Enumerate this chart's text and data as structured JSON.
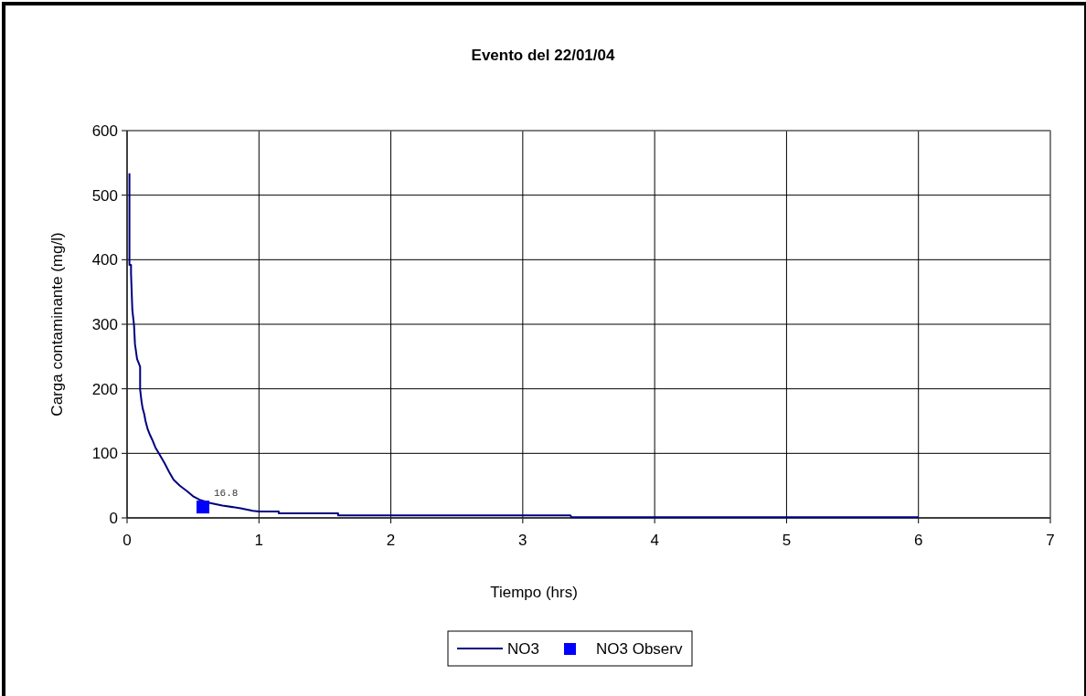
{
  "chart_data": {
    "type": "line",
    "title": "Evento del 22/01/04",
    "xlabel": "Tiempo (hrs)",
    "ylabel": "Carga contaminante (mg/l)",
    "xlim": [
      0,
      7
    ],
    "xticks": [
      0,
      1,
      2,
      3,
      4,
      5,
      6,
      7
    ],
    "ylim": [
      0,
      600
    ],
    "yticks": [
      0,
      100,
      200,
      300,
      400,
      500,
      600
    ],
    "grid": true,
    "legend": "bottom",
    "series": [
      {
        "name": "NO3",
        "color": "#000080",
        "marker": "none",
        "x": [
          0.018,
          0.018,
          0.03,
          0.03,
          0.04,
          0.053,
          0.06,
          0.065,
          0.076,
          0.088,
          0.099,
          0.099,
          0.11,
          0.118,
          0.13,
          0.14,
          0.157,
          0.175,
          0.191,
          0.215,
          0.25,
          0.284,
          0.319,
          0.353,
          0.4,
          0.457,
          0.504,
          0.55,
          0.631,
          0.723,
          0.861,
          0.954,
          1.0,
          1.15,
          1.15,
          1.6,
          1.6,
          3.36,
          3.37,
          6.0
        ],
        "values": [
          534,
          392,
          392,
          379,
          322,
          298,
          269,
          262,
          246,
          240,
          234,
          199,
          180,
          170,
          161,
          150,
          137,
          128,
          121,
          109,
          97,
          85,
          71,
          59,
          50,
          41,
          33,
          28,
          23,
          19,
          15,
          11,
          10,
          10,
          7,
          7,
          4,
          4,
          1,
          1
        ]
      },
      {
        "name": "NO3 Observ",
        "type": "scatter",
        "color": "#0000ff",
        "marker": "square",
        "x": [
          0.575
        ],
        "values": [
          16.8
        ],
        "value_labels": [
          "16.8"
        ]
      }
    ]
  }
}
